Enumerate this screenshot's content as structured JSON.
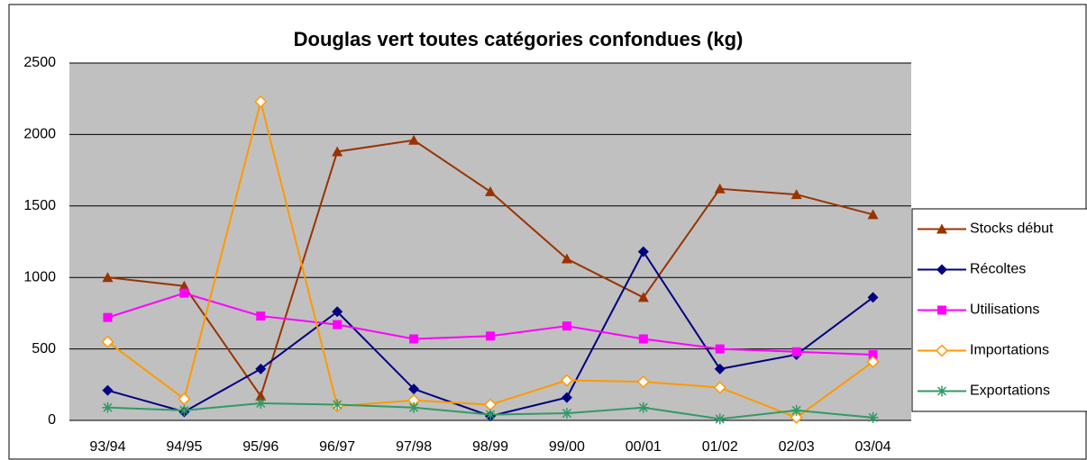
{
  "chart_data": {
    "type": "line",
    "title": "Douglas vert toutes catégories confondues (kg)",
    "categories": [
      "93/94",
      "94/95",
      "95/96",
      "96/97",
      "97/98",
      "98/99",
      "99/00",
      "00/01",
      "01/02",
      "02/03",
      "03/04"
    ],
    "series": [
      {
        "name": "Stocks début",
        "color": "#993300",
        "marker": "triangle",
        "values": [
          1000,
          940,
          170,
          1880,
          1960,
          1600,
          1130,
          860,
          1620,
          1580,
          1440
        ]
      },
      {
        "name": "Récoltes",
        "color": "#000080",
        "marker": "diamond",
        "values": [
          210,
          60,
          360,
          760,
          220,
          30,
          160,
          1180,
          360,
          460,
          860
        ]
      },
      {
        "name": "Utilisations",
        "color": "#ff00ff",
        "marker": "square",
        "values": [
          720,
          890,
          730,
          670,
          570,
          590,
          660,
          570,
          500,
          480,
          460
        ]
      },
      {
        "name": "Importations",
        "color": "#ff9900",
        "marker": "open-diamond",
        "values": [
          550,
          150,
          2230,
          100,
          140,
          110,
          280,
          270,
          230,
          20,
          410
        ]
      },
      {
        "name": "Exportations",
        "color": "#339966",
        "marker": "star",
        "values": [
          90,
          70,
          120,
          110,
          90,
          40,
          50,
          90,
          10,
          70,
          20
        ]
      }
    ],
    "ylim": [
      0,
      2500
    ],
    "yticks": [
      0,
      500,
      1000,
      1500,
      2000,
      2500
    ],
    "grid": true,
    "plot_background": "#c0c0c0",
    "legend": "right"
  }
}
